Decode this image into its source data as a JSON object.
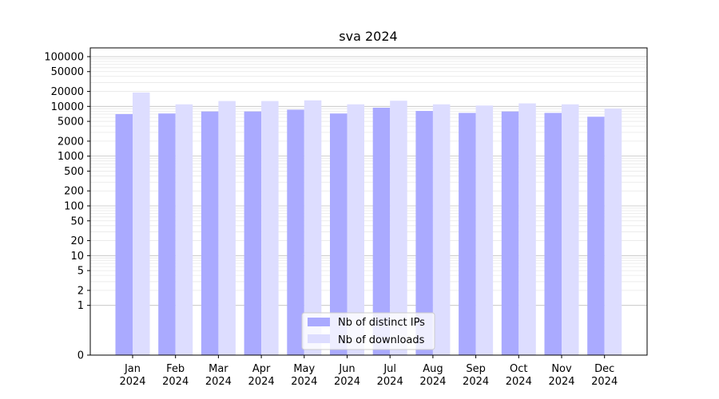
{
  "chart_data": {
    "type": "bar",
    "title": "sva 2024",
    "xlabel": "",
    "ylabel": "",
    "yscale": "symlog",
    "ylim": [
      0,
      150000
    ],
    "grid": true,
    "legend_position": "bottom-center",
    "categories": [
      "Jan\n2024",
      "Feb\n2024",
      "Mar\n2024",
      "Apr\n2024",
      "May\n2024",
      "Jun\n2024",
      "Jul\n2024",
      "Aug\n2024",
      "Sep\n2024",
      "Oct\n2024",
      "Nov\n2024",
      "Dec\n2024"
    ],
    "yticks": [
      0,
      1,
      2,
      5,
      10,
      20,
      50,
      100,
      200,
      500,
      1000,
      2000,
      5000,
      10000,
      20000,
      50000,
      100000
    ],
    "ytick_labels": [
      "0",
      "1",
      "2",
      "5",
      "10",
      "20",
      "50",
      "100",
      "200",
      "500",
      "1000",
      "2000",
      "5000",
      "10000",
      "20000",
      "50000",
      "100000"
    ],
    "series": [
      {
        "name": "Nb of distinct IPs",
        "color": "#aaaaff",
        "values": [
          7000,
          7200,
          7900,
          7900,
          8600,
          7200,
          9400,
          8100,
          7400,
          7900,
          7400,
          6200
        ]
      },
      {
        "name": "Nb of downloads",
        "color": "#ddddff",
        "values": [
          19000,
          11000,
          12800,
          12800,
          13200,
          11000,
          13000,
          11000,
          10400,
          11500,
          11000,
          9000
        ]
      }
    ]
  }
}
